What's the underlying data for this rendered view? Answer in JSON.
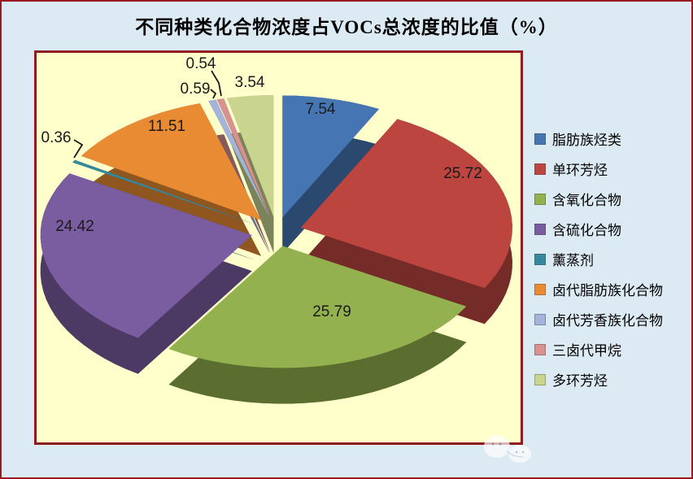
{
  "window": {
    "background": "#dceaf4",
    "border_color": "#9a1b1f"
  },
  "plot": {
    "background": "#ffffcc",
    "border_color": "#8e1b1e"
  },
  "chart_data": {
    "type": "pie",
    "style": "3d-exploded",
    "title": "不同种类化合物浓度占VOCs总浓度的比值（%）",
    "unit": "%",
    "start_angle_deg": 0,
    "direction": "clockwise",
    "legend_position": "right",
    "grid": false,
    "slices": [
      {
        "label": "脂肪族烃类",
        "value": 7.54,
        "color": "#4576b3"
      },
      {
        "label": "单环芳烃",
        "value": 25.72,
        "color": "#bc4540"
      },
      {
        "label": "含氧化合物",
        "value": 25.79,
        "color": "#93b14e"
      },
      {
        "label": "含硫化合物",
        "value": 24.42,
        "color": "#7a5ca1"
      },
      {
        "label": "薰蒸剂",
        "value": 0.36,
        "color": "#35899c"
      },
      {
        "label": "卤代脂肪族化合物",
        "value": 11.51,
        "color": "#e98b33"
      },
      {
        "label": "卤代芳香族化合物",
        "value": 0.59,
        "color": "#a4b3da"
      },
      {
        "label": "三卤代甲烷",
        "value": 0.54,
        "color": "#d9918f"
      },
      {
        "label": "多环芳烃",
        "value": 3.54,
        "color": "#c9d48e"
      }
    ]
  }
}
